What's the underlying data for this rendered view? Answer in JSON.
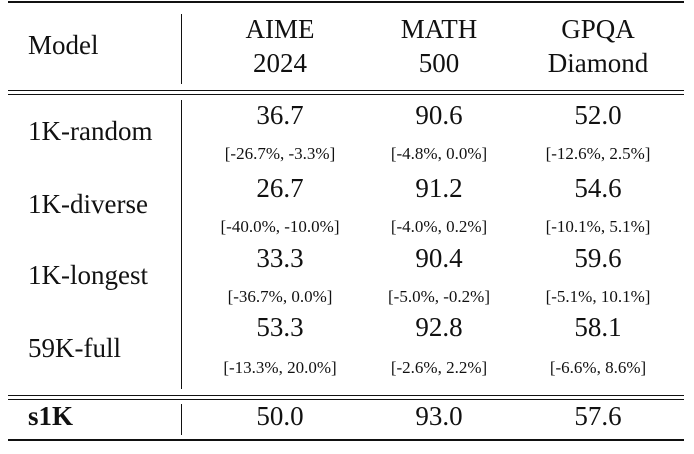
{
  "table": {
    "headers": {
      "model": "Model",
      "col1_line1": "AIME",
      "col1_line2": "2024",
      "col2_line1": "MATH",
      "col2_line2": "500",
      "col3_line1": "GPQA",
      "col3_line2": "Diamond"
    },
    "rows": [
      {
        "model": "1K-random",
        "aime": "36.7",
        "aime_ci": "[-26.7%, -3.3%]",
        "math": "90.6",
        "math_ci": "[-4.8%, 0.0%]",
        "gpqa": "52.0",
        "gpqa_ci": "[-12.6%, 2.5%]"
      },
      {
        "model": "1K-diverse",
        "aime": "26.7",
        "aime_ci": "[-40.0%, -10.0%]",
        "math": "91.2",
        "math_ci": "[-4.0%, 0.2%]",
        "gpqa": "54.6",
        "gpqa_ci": "[-10.1%, 5.1%]"
      },
      {
        "model": "1K-longest",
        "aime": "33.3",
        "aime_ci": "[-36.7%, 0.0%]",
        "math": "90.4",
        "math_ci": "[-5.0%, -0.2%]",
        "gpqa": "59.6",
        "gpqa_ci": "[-5.1%, 10.1%]"
      },
      {
        "model": "59K-full",
        "aime": "53.3",
        "aime_ci": "[-13.3%, 20.0%]",
        "math": "92.8",
        "math_ci": "[-2.6%, 2.2%]",
        "gpqa": "58.1",
        "gpqa_ci": "[-6.6%, 8.6%]"
      }
    ],
    "final_row": {
      "model": "s1K",
      "aime": "50.0",
      "math": "93.0",
      "gpqa": "57.6"
    }
  }
}
